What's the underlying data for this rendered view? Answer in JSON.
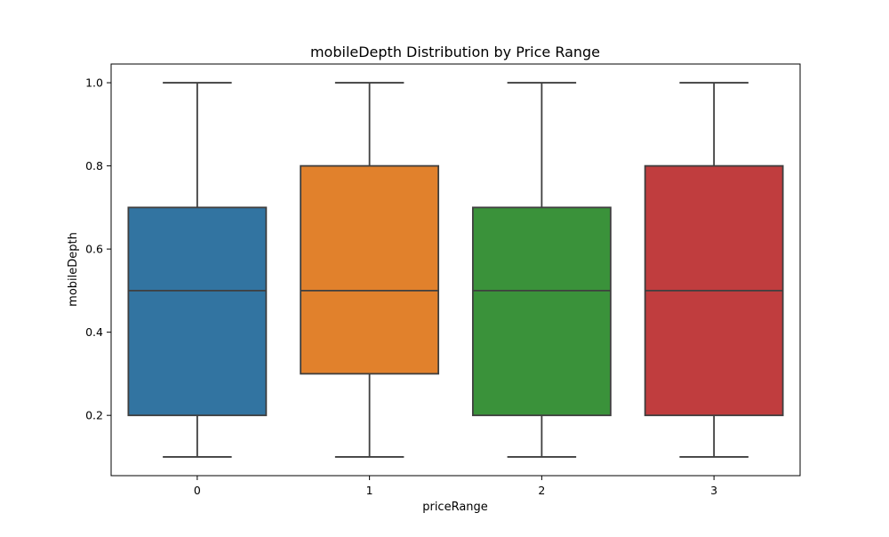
{
  "chart_data": {
    "type": "box",
    "title": "mobileDepth Distribution by Price Range",
    "xlabel": "priceRange",
    "ylabel": "mobileDepth",
    "categories": [
      "0",
      "1",
      "2",
      "3"
    ],
    "ylim": [
      0.055,
      1.045
    ],
    "yticks": [
      "0.2",
      "0.4",
      "0.6",
      "0.8",
      "1.0"
    ],
    "grid": false,
    "legend": "none",
    "boxes": [
      {
        "category": "0",
        "whisker_low": 0.1,
        "q1": 0.2,
        "median": 0.5,
        "q3": 0.7,
        "whisker_high": 1.0,
        "color": "#3274a1"
      },
      {
        "category": "1",
        "whisker_low": 0.1,
        "q1": 0.3,
        "median": 0.5,
        "q3": 0.8,
        "whisker_high": 1.0,
        "color": "#e1812c"
      },
      {
        "category": "2",
        "whisker_low": 0.1,
        "q1": 0.2,
        "median": 0.5,
        "q3": 0.7,
        "whisker_high": 1.0,
        "color": "#3a923a"
      },
      {
        "category": "3",
        "whisker_low": 0.1,
        "q1": 0.2,
        "median": 0.5,
        "q3": 0.8,
        "whisker_high": 1.0,
        "color": "#c03d3e"
      }
    ]
  }
}
